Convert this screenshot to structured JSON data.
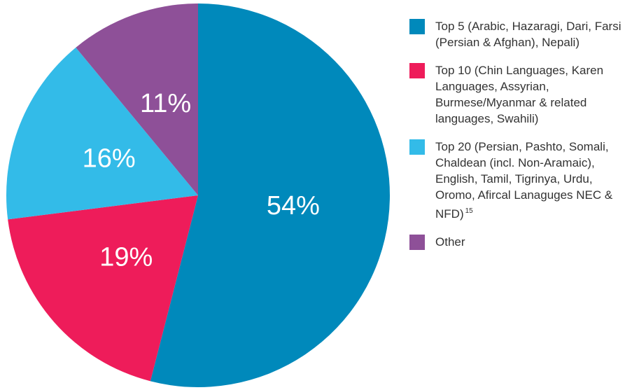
{
  "chart_data": {
    "type": "pie",
    "categories": [
      "Top 5 (Arabic, Hazaragi, Dari, Farsi (Persian & Afghan), Nepali)",
      "Top 10 (Chin Languages, Karen Languages, Assyrian, Burmese/Myanmar & related languages, Swahili)",
      "Top 20 (Persian, Pashto, Somali, Chaldean (incl. Non-Aramaic), English, Tamil, Tigrinya, Urdu, Oromo, Afircal Lanaguges NEC & NFD)",
      "Other"
    ],
    "footnotes": [
      null,
      null,
      "15",
      null
    ],
    "values": [
      54,
      19,
      16,
      11
    ],
    "value_labels": [
      "54%",
      "19%",
      "16%",
      "11%"
    ],
    "colors": [
      "#0089bb",
      "#ee1c5a",
      "#33bbe8",
      "#8e5098"
    ]
  }
}
